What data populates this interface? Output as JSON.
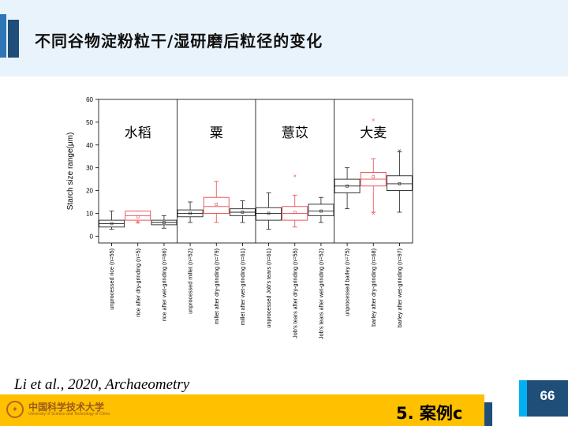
{
  "slide": {
    "title": "不同谷物淀粉粒干/湿研磨后粒径的变化",
    "citation": "Li et al., 2020, Archaeometry",
    "section": "5. 案例c",
    "page_number": "66",
    "logo_text": "中国科学技术大学",
    "logo_sub": "University of Science and Technology of China"
  },
  "chart_data": {
    "type": "box",
    "ylabel": "Starch size range(μm)",
    "ylim": [
      -3,
      60
    ],
    "yticks": [
      0,
      10,
      20,
      30,
      40,
      50,
      60
    ],
    "groups": [
      {
        "label": "水稻",
        "start": 0,
        "end": 2
      },
      {
        "label": "粟",
        "start": 3,
        "end": 5
      },
      {
        "label": "薏苡",
        "start": 6,
        "end": 8
      },
      {
        "label": "大麦",
        "start": 9,
        "end": 11
      }
    ],
    "categories": [
      "unprocessed rice (n=55)",
      "rice after dry-grinding (n=5)",
      "rice after wet-grinding (n=66)",
      "unprocessed millet (n=52)",
      "millet after dry-grinding (n=79)",
      "millet after wet-grinding (n=61)",
      "unprocessed Job's tears (n=61)",
      "Job's tears after dry-grinding (n=55)",
      "Job's tears after wet-grinding (n=52)",
      "unprocessed barley (n=75)",
      "barley after dry-grinding (n=68)",
      "barley after wet-grinding (n=97)"
    ],
    "boxes": [
      {
        "min": 3,
        "q1": 4,
        "median": 5.5,
        "q3": 7,
        "max": 11,
        "mean": 5.5,
        "color": "#222222"
      },
      {
        "min": 6,
        "q1": 7,
        "median": 9,
        "q3": 11,
        "max": 11,
        "mean": 8.5,
        "outliers": [
          6
        ],
        "color": "#e8474c"
      },
      {
        "min": 3.5,
        "q1": 5,
        "median": 6,
        "q3": 7,
        "max": 9,
        "mean": 6,
        "color": "#222222"
      },
      {
        "min": 6,
        "q1": 8.5,
        "median": 10,
        "q3": 11.5,
        "max": 15,
        "mean": 10,
        "color": "#222222"
      },
      {
        "min": 6,
        "q1": 10,
        "median": 13,
        "q3": 17,
        "max": 24,
        "mean": 14,
        "color": "#e8474c"
      },
      {
        "min": 6,
        "q1": 9,
        "median": 10.5,
        "q3": 12,
        "max": 15.5,
        "mean": 10.5,
        "color": "#222222"
      },
      {
        "min": 3,
        "q1": 7,
        "median": 10,
        "q3": 12.5,
        "max": 19,
        "mean": 10,
        "color": "#222222"
      },
      {
        "min": 4,
        "q1": 7,
        "median": 10,
        "q3": 13,
        "max": 18,
        "mean": 10.5,
        "outliers": [
          26.5
        ],
        "color": "#e8474c"
      },
      {
        "min": 6,
        "q1": 9,
        "median": 11,
        "q3": 14,
        "max": 17,
        "mean": 11,
        "color": "#222222"
      },
      {
        "min": 12,
        "q1": 19,
        "median": 22,
        "q3": 25,
        "max": 30,
        "mean": 22,
        "color": "#222222"
      },
      {
        "min": 10.5,
        "q1": 22,
        "median": 25,
        "q3": 28,
        "max": 34,
        "mean": 26,
        "outliers": [
          10,
          51
        ],
        "color": "#e8474c"
      },
      {
        "min": 10.5,
        "q1": 20,
        "median": 23,
        "q3": 26.5,
        "max": 37,
        "mean": 23,
        "outliers": [
          37.5
        ],
        "color": "#222222"
      }
    ]
  }
}
